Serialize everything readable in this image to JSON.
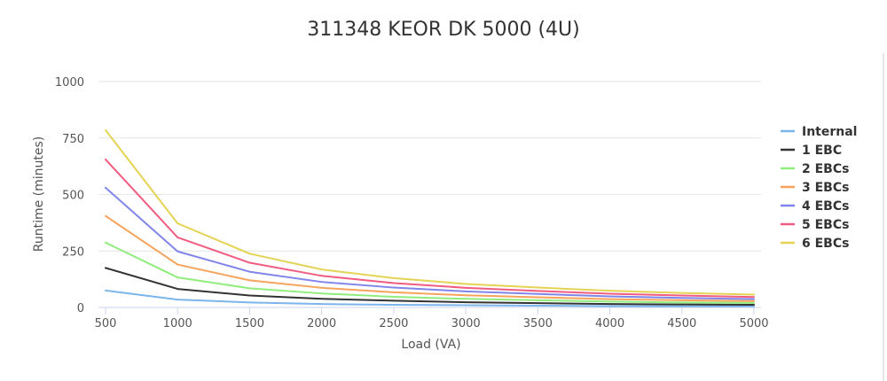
{
  "chart_data": {
    "type": "line",
    "title": "311348 KEOR DK 5000 (4U)",
    "xlabel": "Load (VA)",
    "ylabel": "Runtime (minutes)",
    "x": [
      500,
      1000,
      1500,
      2000,
      2500,
      3000,
      3500,
      4000,
      4500,
      5000
    ],
    "xticks": [
      "500",
      "1000",
      "1500",
      "2000",
      "2500",
      "3000",
      "3500",
      "4000",
      "4500",
      "5000"
    ],
    "yticks": [
      "0",
      "250",
      "500",
      "750",
      "1000"
    ],
    "ylim": [
      0,
      1000
    ],
    "grid": true,
    "legend_position": "right",
    "series": [
      {
        "name": "Internal",
        "color": "#7cb5ec",
        "values": [
          75,
          35,
          22,
          15,
          12,
          10,
          8,
          6,
          5,
          5
        ]
      },
      {
        "name": "1 EBC",
        "color": "#333333",
        "values": [
          175,
          82,
          53,
          38,
          30,
          23,
          19,
          15,
          13,
          12
        ]
      },
      {
        "name": "2 EBCs",
        "color": "#90ed7d",
        "values": [
          287,
          133,
          85,
          62,
          47,
          38,
          32,
          26,
          22,
          20
        ]
      },
      {
        "name": "3 EBCs",
        "color": "#f7a35c",
        "values": [
          405,
          190,
          120,
          87,
          67,
          54,
          45,
          37,
          32,
          28
        ]
      },
      {
        "name": "4 EBCs",
        "color": "#8085e9",
        "values": [
          530,
          248,
          158,
          113,
          88,
          71,
          60,
          49,
          42,
          37
        ]
      },
      {
        "name": "5 EBCs",
        "color": "#f15c80",
        "values": [
          655,
          310,
          198,
          140,
          108,
          87,
          73,
          61,
          53,
          46
        ]
      },
      {
        "name": "6 EBCs",
        "color": "#e4d354",
        "values": [
          785,
          372,
          238,
          168,
          130,
          104,
          88,
          74,
          64,
          57
        ]
      }
    ]
  }
}
